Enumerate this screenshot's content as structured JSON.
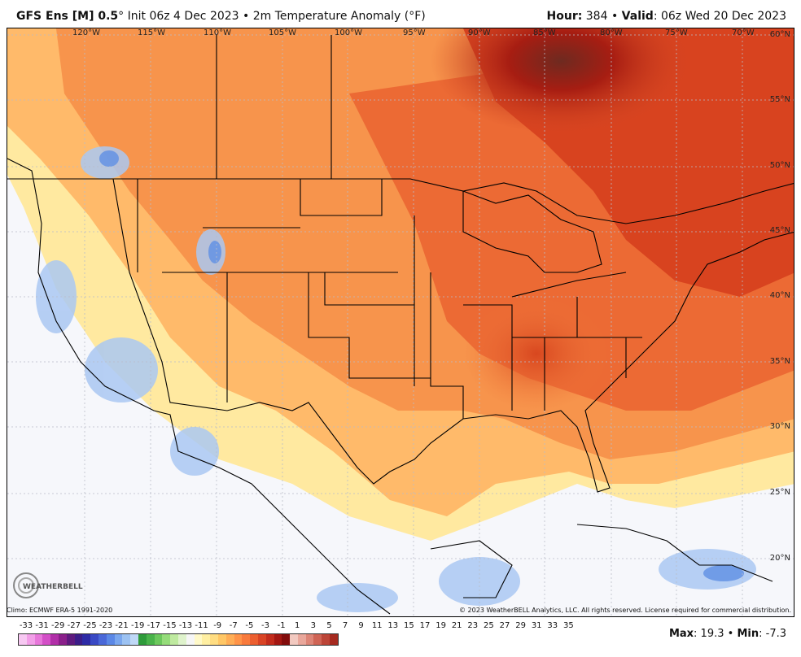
{
  "header": {
    "model_bold": "GFS Ens [M] 0.5",
    "degree": "°",
    "init": " Init 06z 4 Dec 2023",
    "sep": " • ",
    "field": "2m Temperature Anomaly (°F)",
    "hour_label": "Hour:",
    "hour_value": " 384",
    "valid_label": "Valid",
    "valid_value": ": 06z Wed 20 Dec 2023"
  },
  "map": {
    "longitude_labels": [
      "120°W",
      "115°W",
      "110°W",
      "105°W",
      "100°W",
      "95°W",
      "90°W",
      "85°W",
      "80°W",
      "75°W",
      "70°W"
    ],
    "latitude_labels": [
      "60°N",
      "55°N",
      "50°N",
      "45°N",
      "40°N",
      "35°N",
      "30°N",
      "25°N",
      "20°N"
    ],
    "logo_text": "WEATHERBELL"
  },
  "footer": {
    "climo": "Climo: ECMWF ERA-5 1991-2020",
    "copyright": "© 2023 WeatherBELL Analytics, LLC. All rights reserved. License required for commercial distribution."
  },
  "scale": {
    "ticks": [
      "-33",
      "-31",
      "-29",
      "-27",
      "-25",
      "-23",
      "-21",
      "-19",
      "-17",
      "-15",
      "-13",
      "-11",
      "-9",
      "-7",
      "-5",
      "-3",
      "-1",
      "1",
      "3",
      "5",
      "7",
      "9",
      "11",
      "13",
      "15",
      "17",
      "19",
      "21",
      "23",
      "25",
      "27",
      "29",
      "31",
      "33",
      "35"
    ],
    "colors": [
      "#f7c8f2",
      "#f29fe8",
      "#e777da",
      "#d34fc7",
      "#b12fa8",
      "#8a1f8a",
      "#5e1a7e",
      "#3b1d88",
      "#2d2ba6",
      "#3949c4",
      "#4a68d8",
      "#5b88e6",
      "#7aa7ee",
      "#9cc2f2",
      "#bfd8f6",
      "#2e9b3a",
      "#49b34a",
      "#6cc85d",
      "#95dc7a",
      "#bfeaa0",
      "#dff3cc",
      "#f6f6f6",
      "#fff9c8",
      "#ffefa2",
      "#ffdd82",
      "#ffc766",
      "#ffae56",
      "#ff9448",
      "#f87a3c",
      "#ec5f30",
      "#d94425",
      "#c22c1c",
      "#a31712",
      "#820c0c",
      "#f2c9c0",
      "#e9a79b",
      "#dd8577",
      "#cf6455",
      "#bc4538",
      "#a62a20"
    ]
  },
  "stats": {
    "max_label": "Max",
    "max_value": ": 19.3",
    "min_label": "Min",
    "min_value": ": -7.3",
    "sep": " • "
  }
}
